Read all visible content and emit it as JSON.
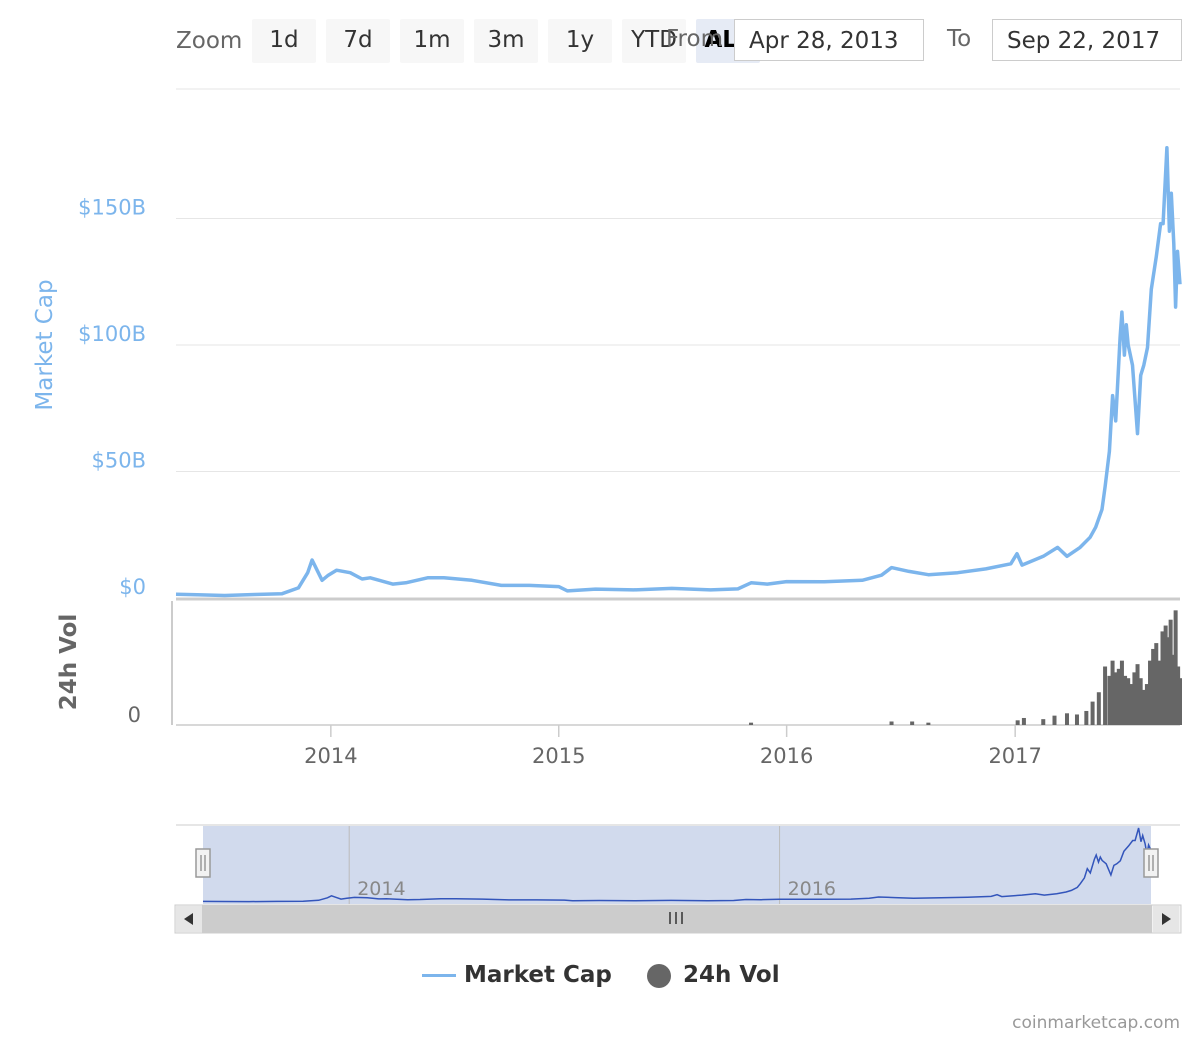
{
  "toolbar": {
    "zoom_label": "Zoom",
    "buttons": [
      "1d",
      "7d",
      "1m",
      "3m",
      "1y",
      "YTD",
      "ALL"
    ],
    "active_button": "ALL",
    "from_label": "From",
    "from_value": "Apr 28, 2013",
    "to_label": "To",
    "to_value": "Sep 22, 2017"
  },
  "chart_data": {
    "type": "line",
    "x_ticks": [
      "2014",
      "2015",
      "2016",
      "2017"
    ],
    "main": {
      "ylabel": "Market Cap",
      "y_ticks": [
        "$0",
        "$50B",
        "$100B",
        "$150B"
      ],
      "ylim": [
        0,
        200
      ],
      "grid": true,
      "color": "#7cb5ec",
      "series": [
        {
          "name": "Market Cap",
          "unit": "$B",
          "points": [
            [
              "2013-04-28",
              1.5
            ],
            [
              "2013-06-01",
              1.3
            ],
            [
              "2013-07-15",
              1.0
            ],
            [
              "2013-09-01",
              1.4
            ],
            [
              "2013-10-15",
              1.7
            ],
            [
              "2013-11-10",
              4.0
            ],
            [
              "2013-11-25",
              10.0
            ],
            [
              "2013-12-02",
              15.0
            ],
            [
              "2013-12-10",
              11.0
            ],
            [
              "2013-12-18",
              7.0
            ],
            [
              "2013-12-28",
              9.0
            ],
            [
              "2014-01-10",
              11.0
            ],
            [
              "2014-02-01",
              10.0
            ],
            [
              "2014-02-20",
              7.5
            ],
            [
              "2014-03-05",
              8.0
            ],
            [
              "2014-04-10",
              5.5
            ],
            [
              "2014-05-01",
              6.0
            ],
            [
              "2014-06-05",
              8.0
            ],
            [
              "2014-07-01",
              8.0
            ],
            [
              "2014-08-15",
              7.0
            ],
            [
              "2014-10-01",
              5.0
            ],
            [
              "2014-11-15",
              5.0
            ],
            [
              "2015-01-01",
              4.5
            ],
            [
              "2015-01-15",
              2.8
            ],
            [
              "2015-03-01",
              3.5
            ],
            [
              "2015-05-01",
              3.2
            ],
            [
              "2015-07-01",
              3.8
            ],
            [
              "2015-09-01",
              3.2
            ],
            [
              "2015-10-15",
              3.6
            ],
            [
              "2015-11-05",
              6.0
            ],
            [
              "2015-12-01",
              5.5
            ],
            [
              "2016-01-01",
              6.5
            ],
            [
              "2016-03-01",
              6.4
            ],
            [
              "2016-05-01",
              7.0
            ],
            [
              "2016-06-01",
              9.0
            ],
            [
              "2016-06-17",
              12.0
            ],
            [
              "2016-07-15",
              10.5
            ],
            [
              "2016-08-15",
              9.2
            ],
            [
              "2016-10-01",
              10.0
            ],
            [
              "2016-11-15",
              11.5
            ],
            [
              "2016-12-25",
              13.5
            ],
            [
              "2017-01-04",
              17.5
            ],
            [
              "2017-01-12",
              13.0
            ],
            [
              "2017-02-15",
              16.5
            ],
            [
              "2017-03-10",
              20.0
            ],
            [
              "2017-03-25",
              16.5
            ],
            [
              "2017-04-15",
              20.0
            ],
            [
              "2017-05-01",
              24.0
            ],
            [
              "2017-05-10",
              28.0
            ],
            [
              "2017-05-20",
              35.0
            ],
            [
              "2017-05-25",
              44.0
            ],
            [
              "2017-06-01",
              58.0
            ],
            [
              "2017-06-06",
              80.0
            ],
            [
              "2017-06-11",
              70.0
            ],
            [
              "2017-06-18",
              103.0
            ],
            [
              "2017-06-21",
              113.0
            ],
            [
              "2017-06-25",
              96.0
            ],
            [
              "2017-06-28",
              108.0
            ],
            [
              "2017-07-01",
              100.0
            ],
            [
              "2017-07-08",
              92.0
            ],
            [
              "2017-07-16",
              65.0
            ],
            [
              "2017-07-21",
              88.0
            ],
            [
              "2017-07-26",
              92.0
            ],
            [
              "2017-08-01",
              99.0
            ],
            [
              "2017-08-07",
              122.0
            ],
            [
              "2017-08-15",
              135.0
            ],
            [
              "2017-08-22",
              148.0
            ],
            [
              "2017-08-26",
              148.0
            ],
            [
              "2017-09-01",
              178.0
            ],
            [
              "2017-09-05",
              145.0
            ],
            [
              "2017-09-08",
              160.0
            ],
            [
              "2017-09-12",
              140.0
            ],
            [
              "2017-09-15",
              115.0
            ],
            [
              "2017-09-18",
              137.0
            ],
            [
              "2017-09-22",
              124.0
            ]
          ]
        }
      ]
    },
    "volume": {
      "ylabel": "24h Vol",
      "y_ticks": [
        "0"
      ],
      "color": "#666666",
      "series": [
        {
          "name": "24h Vol",
          "unit": "relative",
          "points": [
            [
              "2015-11-05",
              0.02
            ],
            [
              "2016-06-17",
              0.03
            ],
            [
              "2016-07-20",
              0.03
            ],
            [
              "2016-08-15",
              0.02
            ],
            [
              "2017-01-05",
              0.04
            ],
            [
              "2017-01-15",
              0.06
            ],
            [
              "2017-02-15",
              0.05
            ],
            [
              "2017-03-05",
              0.08
            ],
            [
              "2017-03-25",
              0.1
            ],
            [
              "2017-04-10",
              0.09
            ],
            [
              "2017-04-25",
              0.12
            ],
            [
              "2017-05-05",
              0.2
            ],
            [
              "2017-05-15",
              0.28
            ],
            [
              "2017-05-25",
              0.5
            ],
            [
              "2017-06-01",
              0.42
            ],
            [
              "2017-06-06",
              0.55
            ],
            [
              "2017-06-11",
              0.45
            ],
            [
              "2017-06-16",
              0.48
            ],
            [
              "2017-06-21",
              0.55
            ],
            [
              "2017-06-26",
              0.42
            ],
            [
              "2017-07-01",
              0.4
            ],
            [
              "2017-07-06",
              0.35
            ],
            [
              "2017-07-11",
              0.45
            ],
            [
              "2017-07-16",
              0.52
            ],
            [
              "2017-07-21",
              0.4
            ],
            [
              "2017-07-26",
              0.3
            ],
            [
              "2017-07-31",
              0.35
            ],
            [
              "2017-08-05",
              0.55
            ],
            [
              "2017-08-10",
              0.65
            ],
            [
              "2017-08-15",
              0.7
            ],
            [
              "2017-08-20",
              0.55
            ],
            [
              "2017-08-25",
              0.8
            ],
            [
              "2017-08-30",
              0.85
            ],
            [
              "2017-09-03",
              0.75
            ],
            [
              "2017-09-07",
              0.9
            ],
            [
              "2017-09-11",
              0.6
            ],
            [
              "2017-09-15",
              0.98
            ],
            [
              "2017-09-19",
              0.5
            ],
            [
              "2017-09-22",
              0.4
            ]
          ]
        }
      ]
    },
    "navigator": {
      "x_ticks": [
        "2014",
        "2016"
      ]
    },
    "legend": [
      "Market Cap",
      "24h Vol"
    ],
    "legend_position": "bottom-center"
  },
  "credit": "coinmarketcap.com"
}
